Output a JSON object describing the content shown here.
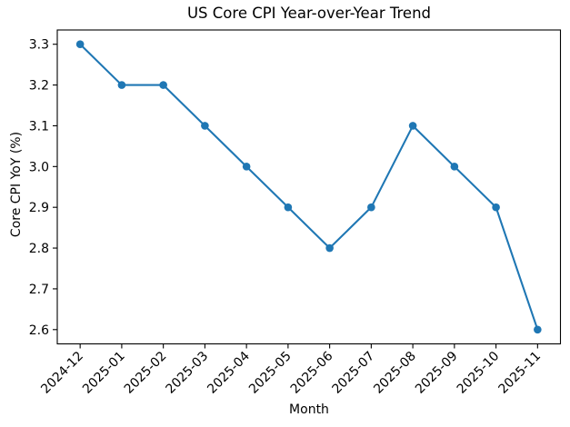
{
  "chart_data": {
    "type": "line",
    "title": "US Core CPI Year-over-Year Trend",
    "xlabel": "Month",
    "ylabel": "Core CPI YoY (%)",
    "categories": [
      "2024-12",
      "2025-01",
      "2025-02",
      "2025-03",
      "2025-04",
      "2025-05",
      "2025-06",
      "2025-07",
      "2025-08",
      "2025-09",
      "2025-10",
      "2025-11"
    ],
    "values": [
      3.3,
      3.2,
      3.2,
      3.1,
      3.0,
      2.9,
      2.8,
      2.9,
      3.1,
      3.0,
      2.9,
      2.6
    ],
    "ylim": [
      2.565,
      3.335
    ],
    "yticks": [
      2.6,
      2.7,
      2.8,
      2.9,
      3.0,
      3.1,
      3.2,
      3.3
    ],
    "x_tick_rotation": 45,
    "grid": false,
    "legend": false,
    "line_color": "#1f77b4",
    "marker": "circle",
    "axis_color": "#000000",
    "background_color": "#ffffff"
  }
}
